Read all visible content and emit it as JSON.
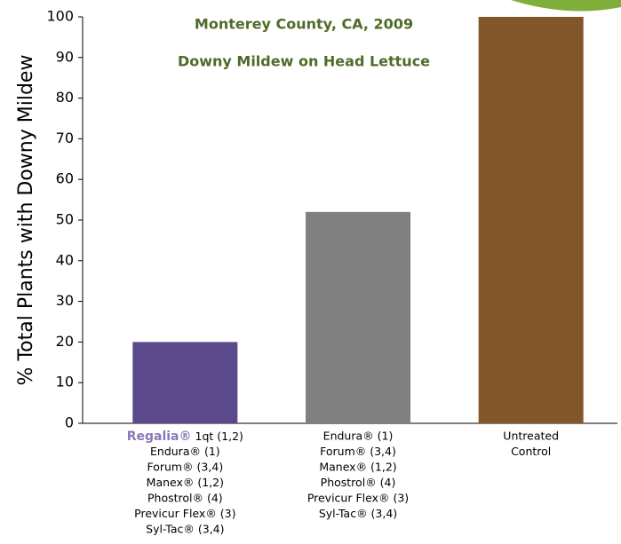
{
  "chart_data": {
    "type": "bar",
    "title": "Monterey County, CA, 2009",
    "subtitle": "Downy Mildew on Head Lettuce",
    "y_label": "% Total Plants with Downy Mildew",
    "categories": [
      [
        [
          "Regalia®",
          "1qt (1,2)"
        ],
        "Endura® (1)",
        "Forum® (3,4)",
        "Manex® (1,2)",
        "Phostrol® (4)",
        "Previcur Flex® (3)",
        "Syl-Tac® (3,4)"
      ],
      [
        "Endura® (1)",
        "Forum® (3,4)",
        "Manex® (1,2)",
        "Phostrol® (4)",
        "Previcur Flex® (3)",
        "Syl-Tac® (3,4)"
      ],
      [
        "Untreated",
        "Control"
      ]
    ],
    "values": [
      20,
      52,
      100
    ],
    "colors": [
      "#5a4a8c",
      "#808080",
      "#83552b"
    ],
    "highlight_color": "#8a78b8",
    "ylim": [
      0,
      100
    ],
    "yticks": [
      0,
      10,
      20,
      30,
      40,
      50,
      60,
      70,
      80,
      90,
      100
    ]
  }
}
